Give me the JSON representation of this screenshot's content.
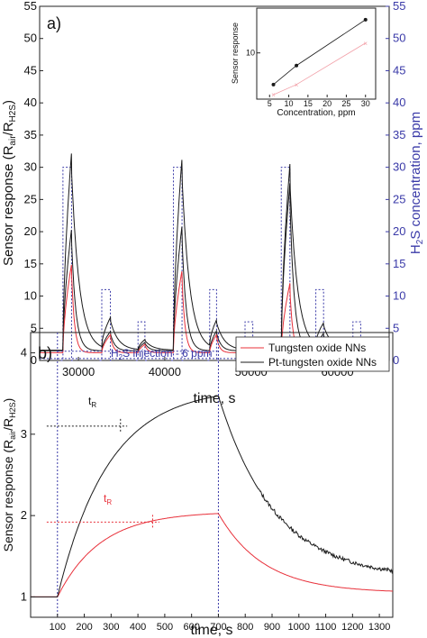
{
  "colors": {
    "black": "#1a1a1a",
    "red": "#e8303a",
    "pink": "#f2a0a8",
    "blue": "#3a3aa8",
    "frame": "#222222"
  },
  "chart_data": [
    {
      "panel_label": "a)",
      "type": "line",
      "xlabel": "time, s",
      "ylabel_left": "Sensor response (R_air/R_H2S)",
      "ylabel_right": "H2S concentration, ppm",
      "xlim": [
        25500,
        66000
      ],
      "ylim_left": [
        0,
        55
      ],
      "ylim_right": [
        0,
        55
      ],
      "x_ticks": [
        30000,
        40000,
        50000,
        60000
      ],
      "x_tick_labels": [
        "30000",
        "40000",
        "50000",
        "60000"
      ],
      "y_ticks": [
        0,
        5,
        10,
        15,
        20,
        25,
        30,
        35,
        40,
        45,
        50,
        55
      ],
      "y_tick_labels": [
        "0",
        "5",
        "10",
        "15",
        "20",
        "25",
        "30",
        "35",
        "40",
        "45",
        "50",
        "55"
      ],
      "pulses": [
        {
          "start": 28200,
          "end": 29200,
          "ppm": 30,
          "peak_black": 32.5,
          "peak_red": 15.0,
          "peak_black2": 20.5
        },
        {
          "start": 32700,
          "end": 33700,
          "ppm": 11,
          "peak_black": 6.5,
          "peak_red": 4.0,
          "peak_black2": 4.5
        },
        {
          "start": 36900,
          "end": 37700,
          "ppm": 6,
          "peak_black": 3.2,
          "peak_red": 2.5,
          "peak_black2": 2.8
        },
        {
          "start": 41000,
          "end": 42000,
          "ppm": 30,
          "peak_black": 31.5,
          "peak_red": 14.0,
          "peak_black2": 21.0
        },
        {
          "start": 45200,
          "end": 46000,
          "ppm": 11,
          "peak_black": 6.0,
          "peak_red": 4.0,
          "peak_black2": 4.6
        },
        {
          "start": 49300,
          "end": 50200,
          "ppm": 6,
          "peak_black": 3.0,
          "peak_red": 2.2,
          "peak_black2": 2.6
        },
        {
          "start": 53500,
          "end": 54500,
          "ppm": 30,
          "peak_black": 30.5,
          "peak_red": 12.0,
          "peak_black2": 27.5
        },
        {
          "start": 57500,
          "end": 58400,
          "ppm": 11,
          "peak_black": 5.5,
          "peak_red": 3.5,
          "peak_black2": 4.2
        },
        {
          "start": 61800,
          "end": 62700,
          "ppm": 6,
          "peak_black": 2.7,
          "peak_red": 2.0,
          "peak_black2": 2.4
        }
      ],
      "inset": {
        "type": "line",
        "xlabel": "Concentration, ppm",
        "ylabel": "Sensor response",
        "xlim": [
          4,
          31
        ],
        "ylim_log": [
          2.2,
          42
        ],
        "x_ticks": [
          5,
          10,
          15,
          20,
          25,
          30
        ],
        "x_tick_labels": [
          "5",
          "10",
          "15",
          "20",
          "25",
          "30"
        ],
        "y_tick_label": "10",
        "series": [
          {
            "color": "black",
            "x": [
              6,
              12,
              30
            ],
            "y": [
              3.4,
              6.5,
              31.0
            ]
          },
          {
            "color": "pink",
            "x": [
              6,
              12,
              30
            ],
            "y": [
              2.4,
              3.4,
              14.0
            ]
          }
        ]
      }
    },
    {
      "panel_label": "b)",
      "type": "line",
      "xlabel": "time, s",
      "ylabel": "Sensor response (R_air/R_H2S)",
      "xlim": [
        0,
        1350
      ],
      "ylim": [
        0.75,
        4.25
      ],
      "x_ticks": [
        100,
        200,
        300,
        400,
        500,
        600,
        700,
        800,
        900,
        1000,
        1100,
        1200,
        1300
      ],
      "x_tick_labels": [
        "100",
        "200",
        "300",
        "400",
        "500",
        "600",
        "700",
        "800",
        "900",
        "1000",
        "1100",
        "1200",
        "1300"
      ],
      "y_ticks": [
        1,
        2,
        3,
        4
      ],
      "y_tick_labels": [
        "1",
        "2",
        "3",
        "4"
      ],
      "annotation": "H2S injection - 6 ppm",
      "injection_start": 100,
      "injection_end": 700,
      "tR_label": "t",
      "tR_sub": "R",
      "tR_black": {
        "x": 335,
        "y": 3.1
      },
      "tR_red": {
        "x": 455,
        "y": 1.92
      },
      "series": [
        {
          "name": "Tungsten oxide NNs",
          "color": "red",
          "baseline": 1.0,
          "plateau": 2.05,
          "final": 1.05
        },
        {
          "name": "Pt-tungsten oxide NNs",
          "color": "black",
          "baseline": 1.0,
          "plateau": 3.58,
          "final": 1.22
        }
      ]
    }
  ]
}
